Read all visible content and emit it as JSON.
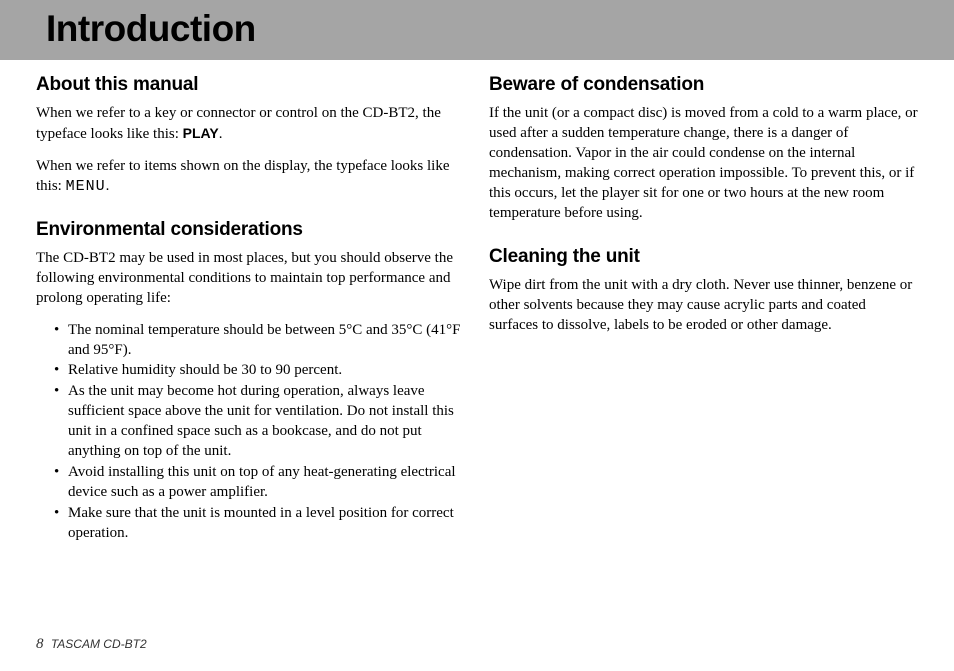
{
  "header": {
    "title": "Introduction"
  },
  "left_column": {
    "section1": {
      "heading": "About this manual",
      "para1_a": "When we refer to a key or connector or control on the CD-BT2, the typeface looks like this: ",
      "para1_key": "PLAY",
      "para1_b": ".",
      "para2_a": "When we refer to items shown on the display, the typeface looks like this: ",
      "para2_display": "MENU",
      "para2_b": "."
    },
    "section2": {
      "heading": "Environmental considerations",
      "intro": "The CD-BT2 may be used in most places, but you should observe the following environmental conditions to maintain top performance and prolong operating life:",
      "items": [
        "The nominal temperature should be between 5°C and 35°C (41°F and 95°F).",
        "Relative humidity should be 30 to 90 percent.",
        "As the unit may become hot during operation, always leave sufficient space above the unit for ventilation. Do not install this unit in a confined space such as a bookcase, and do not put anything on top of the unit.",
        "Avoid installing this unit on top of any heat-generating electrical device such as a power amplifier.",
        "Make sure that the unit is mounted in a level position for correct operation."
      ]
    }
  },
  "right_column": {
    "section1": {
      "heading": "Beware of condensation",
      "para": "If the unit (or a compact disc) is moved from a cold to a warm place, or used after a sudden temperature change, there is a danger of condensation. Vapor in the air could condense on the internal mechanism, making correct operation impossible. To prevent this, or if this occurs, let the player sit for one or two hours at the new room temperature before using."
    },
    "section2": {
      "heading": "Cleaning the unit",
      "para": "Wipe dirt from the unit with a dry cloth. Never use thinner, benzene or other solvents because they may cause acrylic parts and coated surfaces to dissolve, labels to be eroded or other damage."
    }
  },
  "footer": {
    "page_number": "8",
    "product": "TASCAM  CD-BT2"
  }
}
